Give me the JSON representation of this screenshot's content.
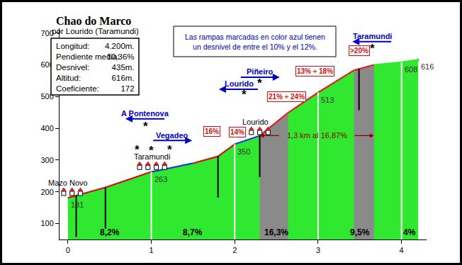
{
  "chart_data": {
    "type": "area",
    "title": "Chao do Marco",
    "subtitle": "por Lourido (Taramundi)",
    "x": [
      0,
      0.45,
      1.0,
      1.5,
      1.8,
      2.0,
      2.3,
      2.64,
      3.0,
      3.43,
      3.67,
      4.0,
      4.2
    ],
    "values": [
      181,
      214,
      263,
      290,
      312,
      350,
      377,
      449,
      513,
      583,
      600,
      608,
      616
    ],
    "color": "#30e830",
    "colors": [
      "#d01010",
      "#d01010",
      "#1c3cdc",
      "#d01010",
      "#d01010",
      "#1c3cdc",
      "#e02020",
      "#e02020",
      "#e02020",
      "#e02020",
      "#30e830",
      "#30e830",
      "#30e830"
    ],
    "xlim": [
      -0.1,
      4.3
    ],
    "xticks": [
      0,
      1,
      2,
      3,
      4
    ],
    "ylim": [
      50,
      715
    ],
    "yticks": [
      100,
      200,
      300,
      400,
      500,
      600,
      700
    ],
    "grid": false,
    "info": [
      {
        "label": "Longitud:",
        "value": "4.200m."
      },
      {
        "label": "Pendiente media:",
        "value": "10,36%"
      },
      {
        "label": "Desnivel:",
        "value": "435m."
      },
      {
        "label": "Altitud:",
        "value": "616m."
      },
      {
        "label": "Coeficiente:",
        "value": "172"
      }
    ],
    "note": [
      "Las rampas marcadas en color azul tienen",
      "un desnivel de entre el 10% y el 12%."
    ],
    "segments": [
      {
        "start": 0,
        "end": 1,
        "label": "8,2%"
      },
      {
        "start": 1,
        "end": 2,
        "label": "8,7%"
      },
      {
        "start": 2,
        "end": 3,
        "label": "16,3%"
      },
      {
        "start": 3,
        "end": 4,
        "label": "9,5%"
      },
      {
        "start": 4,
        "end": 4.2,
        "label": "4%"
      }
    ],
    "steep_zones": [
      {
        "start": 2.3,
        "end": 2.64
      },
      {
        "start": 3.43,
        "end": 3.67
      }
    ],
    "ramps": [
      {
        "x": 1.73,
        "y": 391,
        "label": "16%"
      },
      {
        "x": 2.03,
        "y": 389,
        "label": "14%"
      },
      {
        "x": 2.62,
        "y": 500,
        "label": "21% ÷ 24%"
      },
      {
        "x": 2.96,
        "y": 581,
        "label": "13% ÷ 18%"
      },
      {
        "x": 3.49,
        "y": 644,
        "label": ">20%"
      }
    ],
    "marker_lines": [
      0.1,
      0.45,
      1.8,
      2.3,
      3.49
    ],
    "altitude_labels": [
      {
        "x": 0,
        "value": 181
      },
      {
        "x": 1.0,
        "value": 263
      },
      {
        "x": 2.0,
        "value": 350
      },
      {
        "x": 3.0,
        "value": 513
      },
      {
        "x": 4.0,
        "value": 608
      },
      {
        "x": 4.2,
        "value": 616
      }
    ],
    "places": [
      {
        "name": "Mazo Novo",
        "x": 0.0,
        "y": 228
      },
      {
        "name": "Taramundi",
        "x": 1.01,
        "y": 310
      },
      {
        "name": "Lourido",
        "x": 2.25,
        "y": 420
      }
    ],
    "signs": [
      {
        "label": "A Pontenova",
        "x": 0.93,
        "y": 447,
        "direction": "left"
      },
      {
        "label": "Vegadeo",
        "x": 1.25,
        "y": 379,
        "direction": "right"
      },
      {
        "label": "Lourido",
        "x": 2.05,
        "y": 540,
        "direction": "left"
      },
      {
        "label": "Piñeiro",
        "x": 2.3,
        "y": 578,
        "direction": "right"
      },
      {
        "label": "Taramundi",
        "x": 3.65,
        "y": 690,
        "direction": "left"
      }
    ],
    "asterisks": {
      "text": "*",
      "points": [
        {
          "x": 0.93,
          "y": 405
        },
        {
          "x": 0.83,
          "y": 333
        },
        {
          "x": 1.0,
          "y": 330
        },
        {
          "x": 1.22,
          "y": 333
        },
        {
          "x": 2.11,
          "y": 507
        },
        {
          "x": 2.3,
          "y": 543
        },
        {
          "x": 3.65,
          "y": 652
        }
      ]
    },
    "climb_arrow": {
      "from": 2.3,
      "to": 3.67,
      "y": 377,
      "label": "1,3 km al 16,87%"
    }
  }
}
